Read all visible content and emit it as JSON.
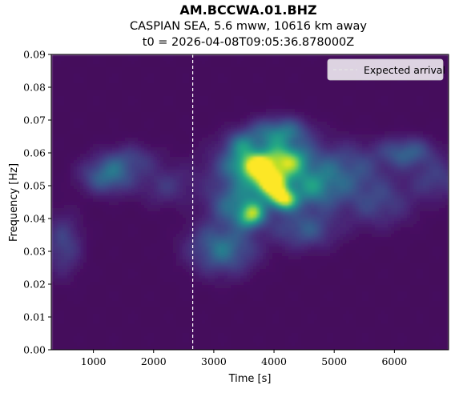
{
  "chart_data": {
    "type": "heatmap",
    "title": "AM.BCCWA.01.BHZ",
    "subtitle": "CASPIAN SEA, 5.6 mww, 10616 km away",
    "subtitle2": "t0 = 2026-04-08T09:05:36.878000Z",
    "xlabel": "Time [s]",
    "ylabel": "Frequency [Hz]",
    "xlim": [
      300,
      6900
    ],
    "ylim": [
      0.0,
      0.09
    ],
    "x_ticks": [
      1000,
      2000,
      3000,
      4000,
      5000,
      6000
    ],
    "y_ticks": [
      0.0,
      0.01,
      0.02,
      0.03,
      0.04,
      0.05,
      0.06,
      0.07,
      0.08,
      0.09
    ],
    "x_tick_labels": [
      "1000",
      "2000",
      "3000",
      "4000",
      "5000",
      "6000"
    ],
    "y_tick_labels": [
      "0.00",
      "0.01",
      "0.02",
      "0.03",
      "0.04",
      "0.05",
      "0.06",
      "0.07",
      "0.08",
      "0.09"
    ],
    "colormap": "viridis",
    "expected_arrival": {
      "time": 2650,
      "label": "Expected arrival",
      "style": "dashed",
      "color": "#ffffff"
    },
    "legend_position": "top-right",
    "energy_blobs": [
      {
        "t": 3920,
        "f": 0.051,
        "amp": 1.0,
        "st": 170,
        "sf": 0.0025
      },
      {
        "t": 4150,
        "f": 0.046,
        "amp": 0.95,
        "st": 150,
        "sf": 0.0022
      },
      {
        "t": 3700,
        "f": 0.056,
        "amp": 0.75,
        "st": 250,
        "sf": 0.0025
      },
      {
        "t": 4200,
        "f": 0.058,
        "amp": 0.55,
        "st": 250,
        "sf": 0.003
      },
      {
        "t": 3620,
        "f": 0.041,
        "amp": 0.7,
        "st": 150,
        "sf": 0.0025
      },
      {
        "t": 3900,
        "f": 0.054,
        "amp": 0.5,
        "st": 550,
        "sf": 0.006
      },
      {
        "t": 4100,
        "f": 0.066,
        "amp": 0.45,
        "st": 300,
        "sf": 0.003
      },
      {
        "t": 3500,
        "f": 0.062,
        "amp": 0.35,
        "st": 200,
        "sf": 0.003
      },
      {
        "t": 3150,
        "f": 0.031,
        "amp": 0.4,
        "st": 350,
        "sf": 0.005
      },
      {
        "t": 3400,
        "f": 0.044,
        "amp": 0.35,
        "st": 300,
        "sf": 0.004
      },
      {
        "t": 4700,
        "f": 0.049,
        "amp": 0.35,
        "st": 300,
        "sf": 0.004
      },
      {
        "t": 5200,
        "f": 0.055,
        "amp": 0.25,
        "st": 400,
        "sf": 0.005
      },
      {
        "t": 6200,
        "f": 0.06,
        "amp": 0.32,
        "st": 300,
        "sf": 0.003
      },
      {
        "t": 6700,
        "f": 0.052,
        "amp": 0.18,
        "st": 300,
        "sf": 0.004
      },
      {
        "t": 1250,
        "f": 0.053,
        "amp": 0.38,
        "st": 280,
        "sf": 0.0035
      },
      {
        "t": 1600,
        "f": 0.058,
        "amp": 0.18,
        "st": 300,
        "sf": 0.003
      },
      {
        "t": 2200,
        "f": 0.05,
        "amp": 0.14,
        "st": 300,
        "sf": 0.004
      },
      {
        "t": 500,
        "f": 0.032,
        "amp": 0.2,
        "st": 200,
        "sf": 0.006
      },
      {
        "t": 4500,
        "f": 0.037,
        "amp": 0.28,
        "st": 350,
        "sf": 0.004
      },
      {
        "t": 5700,
        "f": 0.045,
        "amp": 0.2,
        "st": 400,
        "sf": 0.005
      }
    ]
  }
}
